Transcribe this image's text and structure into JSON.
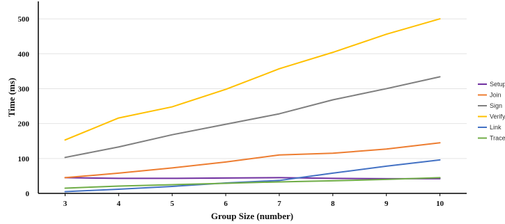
{
  "chart_data": {
    "type": "line",
    "title": "",
    "xlabel": "Group Size (number)",
    "ylabel": "Time (ms)",
    "categories": [
      "3",
      "4",
      "5",
      "6",
      "7",
      "8",
      "9",
      "10"
    ],
    "x_domain": [
      2.5,
      10.5
    ],
    "ylim": [
      0,
      550
    ],
    "yticks": [
      0,
      100,
      200,
      300,
      400,
      500
    ],
    "grid": "horizontal",
    "legend_position": "right",
    "series": [
      {
        "name": "Setup",
        "color": "#7030a0",
        "values": [
          45,
          43,
          43,
          44,
          45,
          43,
          42,
          42
        ]
      },
      {
        "name": "Join",
        "color": "#ed7d31",
        "values": [
          45,
          58,
          73,
          90,
          110,
          115,
          127,
          145
        ]
      },
      {
        "name": "Sign",
        "color": "#7f7f7f",
        "values": [
          103,
          133,
          168,
          198,
          228,
          268,
          300,
          334
        ]
      },
      {
        "name": "Verify",
        "color": "#ffc000",
        "values": [
          153,
          216,
          248,
          298,
          357,
          404,
          456,
          500
        ]
      },
      {
        "name": "Link",
        "color": "#4472c4",
        "values": [
          5,
          12,
          20,
          30,
          37,
          58,
          78,
          96
        ]
      },
      {
        "name": "Trace",
        "color": "#70ad47",
        "values": [
          15,
          21,
          25,
          29,
          33,
          36,
          40,
          45
        ]
      }
    ]
  }
}
